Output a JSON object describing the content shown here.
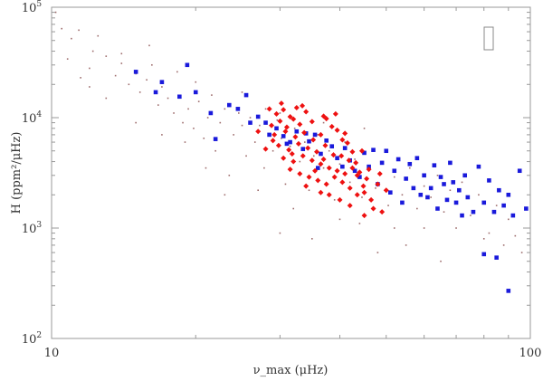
{
  "chart_data": {
    "type": "scatter",
    "xscale": "log",
    "yscale": "log",
    "xlim": [
      10,
      100
    ],
    "ylim": [
      100,
      100000
    ],
    "xlabel": "ν_max (μHz)",
    "ylabel": "H (ppm²/μHz)",
    "x_tick_labels": [
      "10",
      "100"
    ],
    "y_tick_labels": [
      {
        "base": "10",
        "exp": "2"
      },
      {
        "base": "10",
        "exp": "3"
      },
      {
        "base": "10",
        "exp": "4"
      },
      {
        "base": "10",
        "exp": "5"
      }
    ],
    "legend": "empty box, top-right",
    "grid": false,
    "colors": {
      "frame": "#999999",
      "background_points": "#9e6d6d",
      "blue_series": "#1a1adb",
      "red_series": "#ee1111"
    },
    "series": [
      {
        "marker": "dot",
        "color": "#9e6d6d",
        "points": [
          [
            10.2,
            90000
          ],
          [
            10.5,
            64000
          ],
          [
            11,
            52000
          ],
          [
            10.8,
            34000
          ],
          [
            11.4,
            62000
          ],
          [
            12,
            28000
          ],
          [
            12.5,
            55000
          ],
          [
            12.2,
            40000
          ],
          [
            13,
            36000
          ],
          [
            13.6,
            24000
          ],
          [
            14,
            31000
          ],
          [
            14.5,
            20000
          ],
          [
            15,
            25000
          ],
          [
            15.3,
            17000
          ],
          [
            15.8,
            22000
          ],
          [
            16.2,
            30000
          ],
          [
            16.7,
            13000
          ],
          [
            17,
            19000
          ],
          [
            17.5,
            15000
          ],
          [
            18,
            11000
          ],
          [
            18.3,
            26000
          ],
          [
            18.8,
            9000
          ],
          [
            19.3,
            12000
          ],
          [
            19.8,
            8000
          ],
          [
            20.3,
            14000
          ],
          [
            20.8,
            6500
          ],
          [
            21.2,
            10000
          ],
          [
            21.6,
            16000
          ],
          [
            22,
            5000
          ],
          [
            22.5,
            9000
          ],
          [
            23,
            12000
          ],
          [
            23.5,
            3000
          ],
          [
            24,
            7000
          ],
          [
            24.6,
            11000
          ],
          [
            25,
            8500
          ],
          [
            25.5,
            4500
          ],
          [
            26,
            10000
          ],
          [
            26.6,
            6000
          ],
          [
            27.2,
            8500
          ],
          [
            27.8,
            3500
          ],
          [
            28.4,
            7000
          ],
          [
            29,
            5000
          ],
          [
            29.6,
            9500
          ],
          [
            30.2,
            6500
          ],
          [
            30.8,
            2500
          ],
          [
            31.5,
            5500
          ],
          [
            32.2,
            8000
          ],
          [
            33,
            4000
          ],
          [
            33.8,
            6000
          ],
          [
            34.5,
            2200
          ],
          [
            35.3,
            4500
          ],
          [
            36,
            7000
          ],
          [
            37,
            3500
          ],
          [
            38,
            5000
          ],
          [
            39,
            1800
          ],
          [
            40,
            3800
          ],
          [
            41,
            6000
          ],
          [
            42,
            2600
          ],
          [
            43,
            4200
          ],
          [
            44.5,
            1900
          ],
          [
            46,
            3300
          ],
          [
            47.5,
            2300
          ],
          [
            49,
            4000
          ],
          [
            50.5,
            1600
          ],
          [
            52,
            2900
          ],
          [
            54,
            2000
          ],
          [
            56,
            3500
          ],
          [
            58,
            1500
          ],
          [
            60,
            2400
          ],
          [
            62,
            1900
          ],
          [
            64,
            3000
          ],
          [
            66,
            1400
          ],
          [
            68,
            2200
          ],
          [
            70,
            1700
          ],
          [
            72,
            2600
          ],
          [
            75,
            1300
          ],
          [
            78,
            2000
          ],
          [
            82,
            900
          ],
          [
            85,
            1600
          ],
          [
            88,
            700
          ],
          [
            90,
            1200
          ],
          [
            93,
            850
          ],
          [
            96,
            600
          ],
          [
            35,
            800
          ],
          [
            40,
            1200
          ],
          [
            55,
            700
          ],
          [
            32,
            1500
          ],
          [
            27,
            2200
          ],
          [
            23,
            2000
          ],
          [
            21,
            3500
          ],
          [
            19,
            6000
          ],
          [
            17,
            7000
          ],
          [
            15,
            9000
          ],
          [
            13,
            15000
          ],
          [
            12,
            19000
          ],
          [
            11.5,
            23000
          ],
          [
            14,
            38000
          ],
          [
            16,
            45000
          ],
          [
            20,
            21000
          ],
          [
            25,
            17000
          ],
          [
            28,
            12000
          ],
          [
            30,
            11000
          ],
          [
            37,
            9000
          ],
          [
            45,
            8000
          ],
          [
            44,
            1100
          ],
          [
            52,
            1000
          ],
          [
            60,
            1000
          ],
          [
            70,
            1000
          ],
          [
            80,
            800
          ],
          [
            48,
            600
          ],
          [
            65,
            500
          ],
          [
            30,
            900
          ]
        ]
      },
      {
        "marker": "square",
        "color": "#1a1adb",
        "points": [
          [
            15,
            26000
          ],
          [
            17,
            21000
          ],
          [
            18.5,
            15500
          ],
          [
            19.2,
            30000
          ],
          [
            16.5,
            17000
          ],
          [
            20,
            17000
          ],
          [
            21.5,
            11000
          ],
          [
            22,
            6400
          ],
          [
            23.5,
            13000
          ],
          [
            24.5,
            12000
          ],
          [
            25.5,
            16000
          ],
          [
            26,
            9000
          ],
          [
            27,
            10200
          ],
          [
            28,
            9000
          ],
          [
            28.5,
            7000
          ],
          [
            29.5,
            8000
          ],
          [
            30.5,
            6800
          ],
          [
            31.5,
            6000
          ],
          [
            32.5,
            7500
          ],
          [
            33.5,
            5200
          ],
          [
            34.5,
            6100
          ],
          [
            35.5,
            7000
          ],
          [
            36.5,
            4700
          ],
          [
            37.5,
            6200
          ],
          [
            38.5,
            5500
          ],
          [
            39.5,
            4300
          ],
          [
            40.5,
            3600
          ],
          [
            41,
            5300
          ],
          [
            42,
            4100
          ],
          [
            43,
            3300
          ],
          [
            44,
            2900
          ],
          [
            45,
            4800
          ],
          [
            46,
            3600
          ],
          [
            47,
            5100
          ],
          [
            48,
            2500
          ],
          [
            49,
            3900
          ],
          [
            50,
            5000
          ],
          [
            51,
            2100
          ],
          [
            52,
            3300
          ],
          [
            53,
            4200
          ],
          [
            54,
            1700
          ],
          [
            55,
            2800
          ],
          [
            56,
            3800
          ],
          [
            57,
            2300
          ],
          [
            58,
            4300
          ],
          [
            59,
            2000
          ],
          [
            60,
            3000
          ],
          [
            61,
            1900
          ],
          [
            62,
            2300
          ],
          [
            63,
            3700
          ],
          [
            64,
            1500
          ],
          [
            65,
            2900
          ],
          [
            66,
            2500
          ],
          [
            67,
            1800
          ],
          [
            68,
            3900
          ],
          [
            69,
            2600
          ],
          [
            70,
            1700
          ],
          [
            71,
            2200
          ],
          [
            72,
            1300
          ],
          [
            73,
            3000
          ],
          [
            74,
            1900
          ],
          [
            76,
            1400
          ],
          [
            78,
            3600
          ],
          [
            80,
            1700
          ],
          [
            82,
            2700
          ],
          [
            84,
            1400
          ],
          [
            86,
            2200
          ],
          [
            88,
            1600
          ],
          [
            90,
            2000
          ],
          [
            92,
            1300
          ],
          [
            95,
            3300
          ],
          [
            98,
            1500
          ],
          [
            80,
            580
          ],
          [
            85,
            540
          ],
          [
            90,
            270
          ],
          [
            31,
            5800
          ],
          [
            34,
            7200
          ],
          [
            36,
            3500
          ]
        ]
      },
      {
        "marker": "diamond",
        "color": "#ee1111",
        "points": [
          [
            28.5,
            12000
          ],
          [
            29.5,
            10800
          ],
          [
            30.5,
            11800
          ],
          [
            31.5,
            10200
          ],
          [
            32.5,
            12300
          ],
          [
            28.8,
            8500
          ],
          [
            30,
            9300
          ],
          [
            31,
            8200
          ],
          [
            32,
            9700
          ],
          [
            33,
            8700
          ],
          [
            34,
            11300
          ],
          [
            35,
            9200
          ],
          [
            29.2,
            7000
          ],
          [
            30.8,
            7500
          ],
          [
            32.3,
            6700
          ],
          [
            33.7,
            7300
          ],
          [
            35.2,
            6300
          ],
          [
            36.5,
            7000
          ],
          [
            37.5,
            9800
          ],
          [
            38.5,
            8300
          ],
          [
            39.5,
            7700
          ],
          [
            40.5,
            6300
          ],
          [
            41.5,
            5900
          ],
          [
            42.5,
            4900
          ],
          [
            29.8,
            5600
          ],
          [
            31.3,
            5100
          ],
          [
            32.8,
            5800
          ],
          [
            34.3,
            5300
          ],
          [
            35.8,
            4900
          ],
          [
            37.3,
            5600
          ],
          [
            38.8,
            4600
          ],
          [
            40.3,
            4500
          ],
          [
            41.8,
            4100
          ],
          [
            43.2,
            3900
          ],
          [
            44.5,
            5000
          ],
          [
            30.5,
            4300
          ],
          [
            32,
            4000
          ],
          [
            33.5,
            4500
          ],
          [
            35,
            4100
          ],
          [
            36.5,
            3800
          ],
          [
            38,
            3500
          ],
          [
            39.5,
            3300
          ],
          [
            41,
            3100
          ],
          [
            42.5,
            3500
          ],
          [
            44,
            3200
          ],
          [
            45.5,
            2800
          ],
          [
            31.5,
            3400
          ],
          [
            33,
            3100
          ],
          [
            34.5,
            2900
          ],
          [
            36,
            2700
          ],
          [
            37.5,
            2500
          ],
          [
            39,
            2900
          ],
          [
            40.5,
            2600
          ],
          [
            42,
            2300
          ],
          [
            43.5,
            2000
          ],
          [
            45,
            2100
          ],
          [
            46.5,
            1800
          ],
          [
            48,
            2500
          ],
          [
            47,
            1500
          ],
          [
            45,
            1300
          ],
          [
            49,
            1400
          ],
          [
            34,
            2400
          ],
          [
            36.5,
            2100
          ],
          [
            38,
            2000
          ],
          [
            40,
            1800
          ],
          [
            42,
            1600
          ],
          [
            43.5,
            3000
          ],
          [
            29,
            6200
          ],
          [
            27,
            7500
          ],
          [
            28,
            5200
          ],
          [
            30.2,
            13500
          ],
          [
            33.4,
            12800
          ],
          [
            37,
            10300
          ],
          [
            39.2,
            10800
          ],
          [
            41,
            7200
          ],
          [
            46,
            3400
          ],
          [
            48.5,
            3100
          ],
          [
            35.5,
            3300
          ],
          [
            37,
            4200
          ],
          [
            31.8,
            4700
          ],
          [
            44.8,
            2400
          ],
          [
            50,
            2200
          ]
        ]
      }
    ]
  }
}
